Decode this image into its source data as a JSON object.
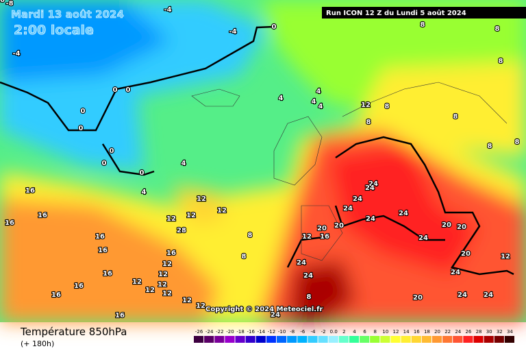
{
  "header": {
    "date": "Mardi 13 août 2024",
    "time": "2:00 locale",
    "run": "Run ICON 12 Z du Lundi 5 août 2024"
  },
  "footer": {
    "title": "Température 850hPa",
    "lead": "(+ 180h)",
    "copyright": "Copyright © 2024 Meteociel.fr"
  },
  "colorbar": {
    "ticks": [
      -26,
      -24,
      -22,
      -20,
      -18,
      -16,
      -14,
      -12,
      -10,
      -8,
      -6,
      -4,
      -2,
      {
        "value": 0,
        "label": "0.0"
      },
      2,
      4,
      6,
      8,
      10,
      12,
      14,
      16,
      18,
      20,
      22,
      24,
      26,
      28,
      30,
      32,
      34
    ],
    "colors": [
      "#3d0040",
      "#5a0066",
      "#7a0099",
      "#9900cc",
      "#6600cc",
      "#3300cc",
      "#0000cc",
      "#0033ff",
      "#0066ff",
      "#0099ff",
      "#00b3ff",
      "#33ccff",
      "#66e0ff",
      "#99f0ff",
      "#66ffcc",
      "#33ff99",
      "#66ff66",
      "#99ff33",
      "#ccff33",
      "#ffff33",
      "#ffee33",
      "#ffd633",
      "#ffbb33",
      "#ff9933",
      "#ff7733",
      "#ff5533",
      "#ff2222",
      "#dd0000",
      "#aa0000",
      "#770000",
      "#330000"
    ]
  },
  "map_labels": [
    -8,
    -4,
    -4,
    -4,
    0,
    0,
    0,
    0,
    0,
    0,
    0,
    0,
    4,
    4,
    4,
    4,
    4,
    4,
    12,
    8,
    8,
    8,
    8,
    8,
    8,
    8,
    8,
    24,
    24,
    24,
    24,
    24,
    24,
    24,
    24,
    24,
    24,
    24,
    24,
    24,
    20,
    20,
    20,
    20,
    20,
    20,
    16,
    16,
    16,
    16,
    16,
    16,
    16,
    16,
    16,
    16,
    16,
    12,
    12,
    12,
    12,
    12,
    12,
    12,
    12,
    12,
    12,
    12,
    12,
    12,
    12,
    8,
    8,
    8,
    28,
    16
  ]
}
